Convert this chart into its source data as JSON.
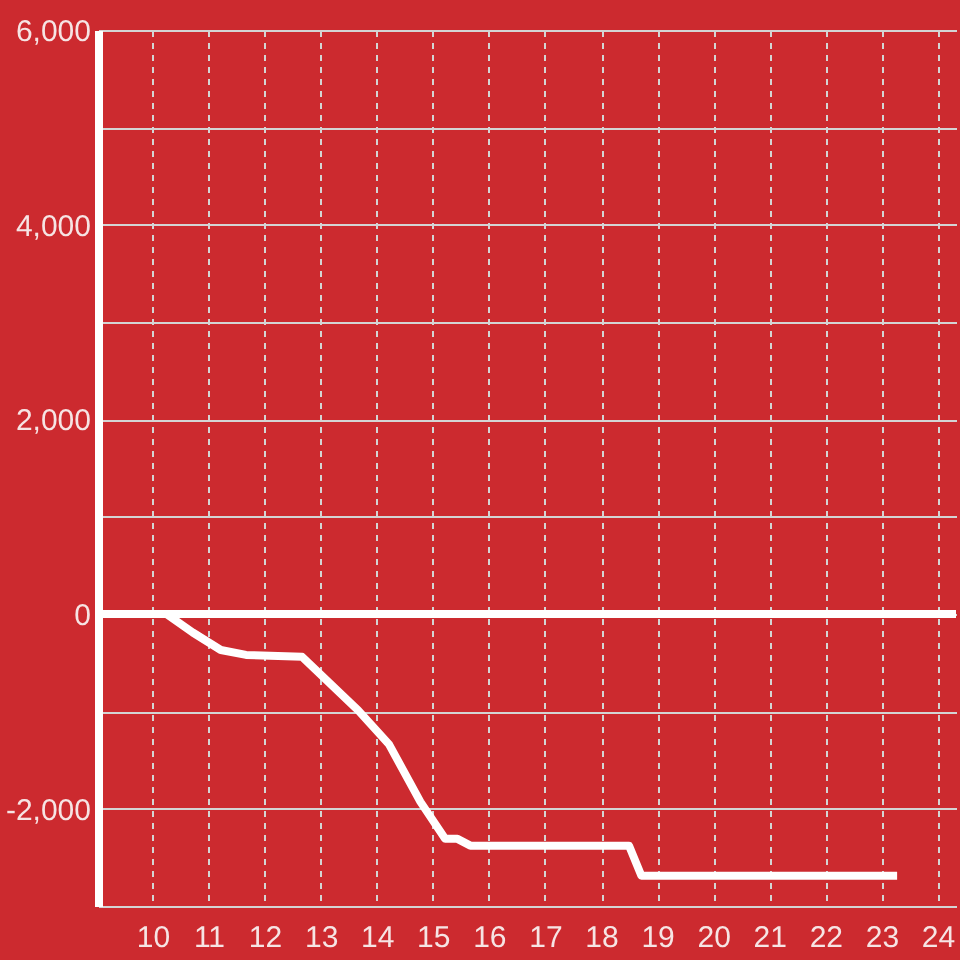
{
  "chart_data": {
    "type": "line",
    "x": [
      9.1,
      10.25,
      10.72,
      11.22,
      11.67,
      12.67,
      13.67,
      14.22,
      14.78,
      15.22,
      15.44,
      15.67,
      18.5,
      18.72,
      23.28
    ],
    "values": [
      0,
      0,
      -190,
      -370,
      -420,
      -440,
      -990,
      -1340,
      -1930,
      -2310,
      -2310,
      -2380,
      -2380,
      -2690,
      -2690
    ],
    "color": "#ffffff",
    "xlim": [
      9.03,
      24.33
    ],
    "ylim": [
      -3000,
      6000
    ],
    "xticks": [
      10,
      11,
      12,
      13,
      14,
      15,
      16,
      17,
      18,
      19,
      20,
      21,
      22,
      23,
      24
    ],
    "yticks": [
      {
        "value": -3000,
        "label": null
      },
      {
        "value": -2000,
        "label": "-2,000"
      },
      {
        "value": -1000,
        "label": null
      },
      0,
      {
        "value": 1000,
        "label": null
      },
      {
        "value": 2000,
        "label": "2,000"
      },
      {
        "value": 3000,
        "label": null
      },
      {
        "value": 4000,
        "label": "4,000"
      },
      {
        "value": 5000,
        "label": null
      },
      {
        "value": 6000,
        "label": "6,000"
      }
    ],
    "grid": true,
    "line_style": "solid",
    "ref_lines": [
      {
        "axis": "y",
        "value": 0,
        "color": "#ffffff"
      }
    ]
  }
}
